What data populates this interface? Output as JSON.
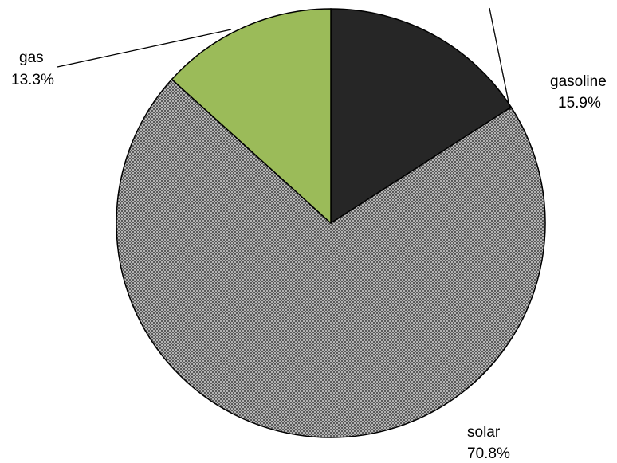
{
  "chart_data": {
    "type": "pie",
    "categories": [
      "gasoline",
      "solar",
      "gas"
    ],
    "values": [
      15.9,
      70.8,
      13.3
    ],
    "value_labels": [
      "15.9%",
      "70.8%",
      "13.3%"
    ],
    "colors": [
      "#262626",
      "#8c8c8c",
      "#9bbb59"
    ],
    "patterns": [
      "solid",
      "checker",
      "solid"
    ],
    "start_angle": "12 o'clock",
    "direction": "clockwise",
    "legend": "none"
  }
}
